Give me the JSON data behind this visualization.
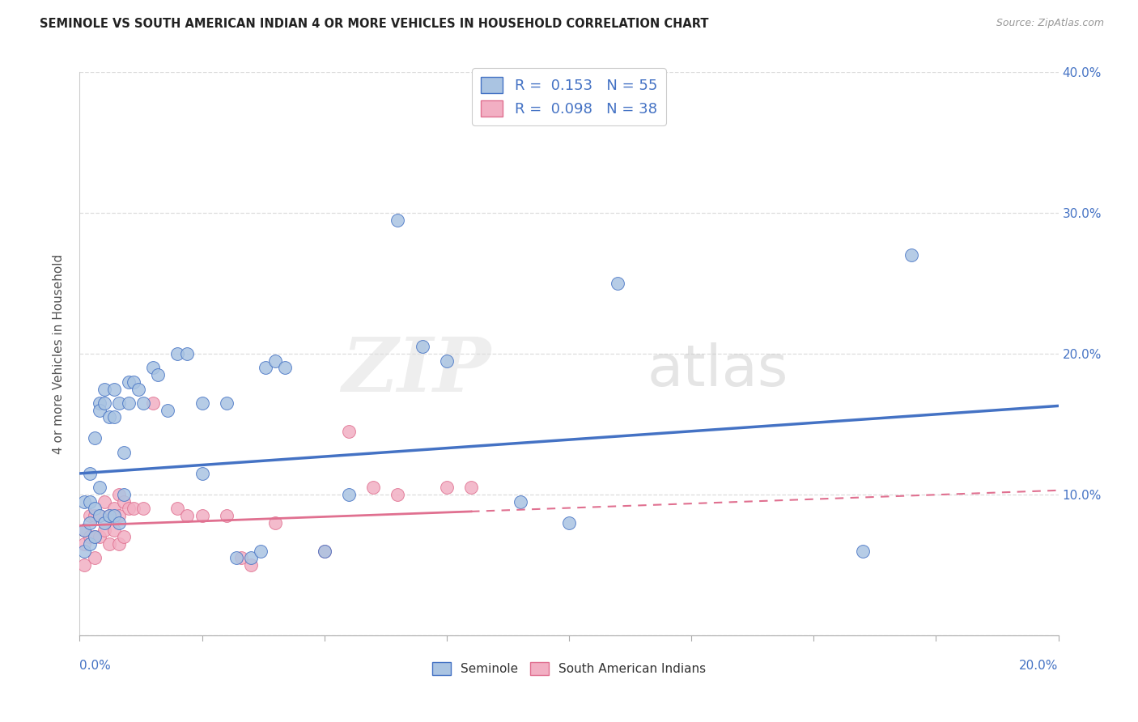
{
  "title": "SEMINOLE VS SOUTH AMERICAN INDIAN 4 OR MORE VEHICLES IN HOUSEHOLD CORRELATION CHART",
  "source": "Source: ZipAtlas.com",
  "ylabel": "4 or more Vehicles in Household",
  "xmin": 0.0,
  "xmax": 0.2,
  "ymin": 0.0,
  "ymax": 0.4,
  "seminole_R": 0.153,
  "seminole_N": 55,
  "south_american_R": 0.098,
  "south_american_N": 38,
  "seminole_color": "#aac4e2",
  "south_american_color": "#f2afc3",
  "trend_seminole_color": "#4472c4",
  "trend_south_american_color": "#e07090",
  "seminole_trend_start": 0.115,
  "seminole_trend_end": 0.163,
  "sa_trend_start": 0.078,
  "sa_trend_end": 0.103,
  "seminole_x": [
    0.001,
    0.001,
    0.001,
    0.002,
    0.002,
    0.002,
    0.002,
    0.003,
    0.003,
    0.003,
    0.004,
    0.004,
    0.004,
    0.004,
    0.005,
    0.005,
    0.005,
    0.006,
    0.006,
    0.007,
    0.007,
    0.007,
    0.008,
    0.008,
    0.009,
    0.009,
    0.01,
    0.01,
    0.011,
    0.012,
    0.013,
    0.015,
    0.016,
    0.018,
    0.02,
    0.022,
    0.025,
    0.025,
    0.03,
    0.032,
    0.035,
    0.037,
    0.038,
    0.04,
    0.042,
    0.05,
    0.055,
    0.065,
    0.07,
    0.075,
    0.09,
    0.1,
    0.11,
    0.16,
    0.17
  ],
  "seminole_y": [
    0.095,
    0.075,
    0.06,
    0.115,
    0.095,
    0.08,
    0.065,
    0.14,
    0.09,
    0.07,
    0.165,
    0.16,
    0.105,
    0.085,
    0.175,
    0.165,
    0.08,
    0.155,
    0.085,
    0.175,
    0.155,
    0.085,
    0.165,
    0.08,
    0.13,
    0.1,
    0.18,
    0.165,
    0.18,
    0.175,
    0.165,
    0.19,
    0.185,
    0.16,
    0.2,
    0.2,
    0.165,
    0.115,
    0.165,
    0.055,
    0.055,
    0.06,
    0.19,
    0.195,
    0.19,
    0.06,
    0.1,
    0.295,
    0.205,
    0.195,
    0.095,
    0.08,
    0.25,
    0.06,
    0.27
  ],
  "south_american_x": [
    0.001,
    0.001,
    0.001,
    0.002,
    0.002,
    0.003,
    0.003,
    0.003,
    0.004,
    0.004,
    0.005,
    0.005,
    0.006,
    0.006,
    0.007,
    0.007,
    0.008,
    0.008,
    0.008,
    0.009,
    0.009,
    0.01,
    0.011,
    0.013,
    0.015,
    0.02,
    0.022,
    0.025,
    0.03,
    0.033,
    0.04,
    0.05,
    0.055,
    0.06,
    0.065,
    0.075,
    0.08,
    0.035
  ],
  "south_american_y": [
    0.075,
    0.065,
    0.05,
    0.085,
    0.07,
    0.085,
    0.07,
    0.055,
    0.085,
    0.07,
    0.095,
    0.075,
    0.085,
    0.065,
    0.09,
    0.075,
    0.1,
    0.085,
    0.065,
    0.095,
    0.07,
    0.09,
    0.09,
    0.09,
    0.165,
    0.09,
    0.085,
    0.085,
    0.085,
    0.055,
    0.08,
    0.06,
    0.145,
    0.105,
    0.1,
    0.105,
    0.105,
    0.05
  ],
  "watermark_zip": "ZIP",
  "watermark_atlas": "atlas",
  "grid_color": "#dddddd",
  "background_color": "#ffffff",
  "right_ytick_labels": [
    "",
    "10.0%",
    "20.0%",
    "30.0%",
    "40.0%"
  ],
  "right_ytick_color": "#4472c4"
}
